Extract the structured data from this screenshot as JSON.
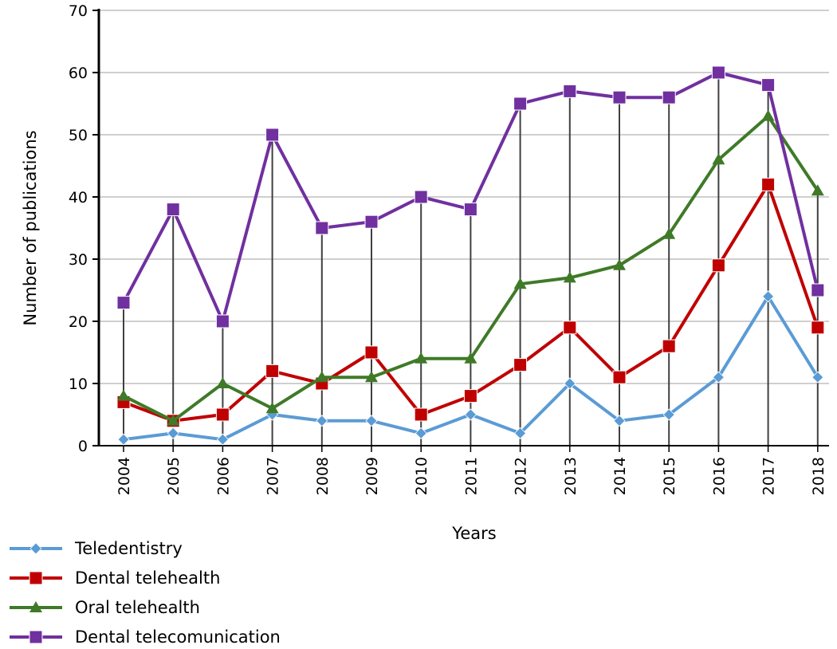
{
  "chart_data": {
    "type": "line",
    "xlabel": "Years",
    "ylabel": "Number of publications",
    "ylim": [
      0,
      70
    ],
    "yticks": [
      0,
      10,
      20,
      30,
      40,
      50,
      60,
      70
    ],
    "categories": [
      "2004",
      "2005",
      "2006",
      "2007",
      "2008",
      "2009",
      "2010",
      "2011",
      "2012",
      "2013",
      "2014",
      "2015",
      "2016",
      "2017",
      "2018"
    ],
    "grid": {
      "horizontal": true,
      "vertical_drop_lines": true
    },
    "legend_position": "bottom-left",
    "series": [
      {
        "name": "Teledentistry",
        "color": "#5b9bd5",
        "marker": "diamond",
        "values": [
          1,
          2,
          1,
          5,
          4,
          4,
          2,
          5,
          2,
          10,
          4,
          5,
          11,
          24,
          11
        ]
      },
      {
        "name": "Dental telehealth",
        "color": "#c00000",
        "marker": "square",
        "values": [
          7,
          4,
          5,
          12,
          10,
          15,
          5,
          8,
          13,
          19,
          11,
          16,
          29,
          42,
          19
        ]
      },
      {
        "name": "Oral telehealth",
        "color": "#3f7a28",
        "marker": "triangle",
        "values": [
          8,
          4,
          10,
          6,
          11,
          11,
          14,
          14,
          26,
          27,
          29,
          34,
          46,
          53,
          41
        ]
      },
      {
        "name": "Dental telecomunication",
        "color": "#7030a0",
        "marker": "square",
        "values": [
          23,
          38,
          20,
          50,
          35,
          36,
          40,
          38,
          55,
          57,
          56,
          56,
          60,
          58,
          25
        ]
      }
    ]
  }
}
